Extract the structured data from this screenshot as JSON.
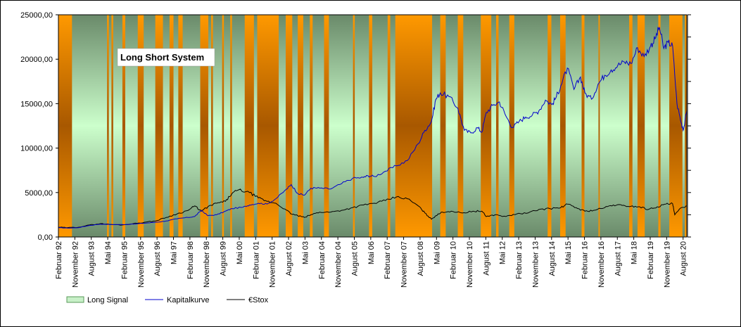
{
  "chart_data": {
    "type": "line",
    "title": "Long Short System",
    "ylim": [
      0,
      25000
    ],
    "yticks": [
      "0,00",
      "5000,00",
      "10000,00",
      "15000,00",
      "20000,00",
      "25000,00"
    ],
    "ytick_values": [
      0,
      5000,
      10000,
      15000,
      20000,
      25000
    ],
    "xlim": [
      1992.08,
      2020.75
    ],
    "xticks": [
      {
        "label": "Februar 92",
        "t": 1992.08
      },
      {
        "label": "November 92",
        "t": 1992.83
      },
      {
        "label": "August 93",
        "t": 1993.58
      },
      {
        "label": "Mai 94",
        "t": 1994.33
      },
      {
        "label": "Februar 95",
        "t": 1995.08
      },
      {
        "label": "November 95",
        "t": 1995.83
      },
      {
        "label": "August 96",
        "t": 1996.58
      },
      {
        "label": "Mai 97",
        "t": 1997.33
      },
      {
        "label": "Februar 98",
        "t": 1998.08
      },
      {
        "label": "November 98",
        "t": 1998.83
      },
      {
        "label": "August 99",
        "t": 1999.58
      },
      {
        "label": "Mai 00",
        "t": 2000.33
      },
      {
        "label": "Februar 01",
        "t": 2001.08
      },
      {
        "label": "November 01",
        "t": 2001.83
      },
      {
        "label": "August 02",
        "t": 2002.58
      },
      {
        "label": "Mai 03",
        "t": 2003.33
      },
      {
        "label": "Februar 04",
        "t": 2004.08
      },
      {
        "label": "November 04",
        "t": 2004.83
      },
      {
        "label": "August 05",
        "t": 2005.58
      },
      {
        "label": "Mai 06",
        "t": 2006.33
      },
      {
        "label": "Februar 07",
        "t": 2007.08
      },
      {
        "label": "November 07",
        "t": 2007.83
      },
      {
        "label": "August 08",
        "t": 2008.58
      },
      {
        "label": "Mai 09",
        "t": 2009.33
      },
      {
        "label": "Februar 10",
        "t": 2010.08
      },
      {
        "label": "November 10",
        "t": 2010.83
      },
      {
        "label": "August 11",
        "t": 2011.58
      },
      {
        "label": "Mai 12",
        "t": 2012.33
      },
      {
        "label": "Februar 13",
        "t": 2013.08
      },
      {
        "label": "November 13",
        "t": 2013.83
      },
      {
        "label": "August 14",
        "t": 2014.58
      },
      {
        "label": "Mai 15",
        "t": 2015.33
      },
      {
        "label": "Februar 16",
        "t": 2016.08
      },
      {
        "label": "November 16",
        "t": 2016.83
      },
      {
        "label": "August 17",
        "t": 2017.58
      },
      {
        "label": "Mai 18",
        "t": 2018.33
      },
      {
        "label": "Februar 19",
        "t": 2019.08
      },
      {
        "label": "November 19",
        "t": 2019.83
      },
      {
        "label": "August 20",
        "t": 2020.58
      }
    ],
    "grid": false,
    "legend_placement": "bottom-left",
    "long_signal": {
      "name": "Long Signal",
      "short_periods": [
        [
          1992.08,
          1992.7
        ],
        [
          1994.3,
          1994.38
        ],
        [
          1994.5,
          1994.58
        ],
        [
          1995.0,
          1995.13
        ],
        [
          1995.7,
          1995.97
        ],
        [
          1996.5,
          1996.85
        ],
        [
          1997.15,
          1997.33
        ],
        [
          1997.55,
          1997.75
        ],
        [
          1998.55,
          1998.92
        ],
        [
          1999.05,
          1999.13
        ],
        [
          1999.55,
          1999.63
        ],
        [
          1999.92,
          2000.0
        ],
        [
          2000.58,
          2001.0
        ],
        [
          2001.15,
          2002.13
        ],
        [
          2002.45,
          2002.75
        ],
        [
          2003.0,
          2003.25
        ],
        [
          2003.55,
          2003.68
        ],
        [
          2004.2,
          2004.42
        ],
        [
          2005.52,
          2005.6
        ],
        [
          2006.25,
          2006.4
        ],
        [
          2007.1,
          2007.22
        ],
        [
          2007.45,
          2009.13
        ],
        [
          2009.5,
          2009.75
        ],
        [
          2010.3,
          2010.55
        ],
        [
          2011.35,
          2011.83
        ],
        [
          2012.05,
          2012.16
        ],
        [
          2012.65,
          2012.88
        ],
        [
          2014.4,
          2014.57
        ],
        [
          2014.97,
          2015.22
        ],
        [
          2015.95,
          2016.08
        ],
        [
          2016.72,
          2016.78
        ],
        [
          2018.12,
          2018.27
        ],
        [
          2018.5,
          2018.83
        ],
        [
          2019.45,
          2019.55
        ],
        [
          2019.95,
          2020.55
        ],
        [
          2020.66,
          2020.75
        ]
      ]
    },
    "series": [
      {
        "name": "Kapitalkurve",
        "color": "#0000cc",
        "points": [
          [
            1992.08,
            1050
          ],
          [
            1992.5,
            1000
          ],
          [
            1993.0,
            1050
          ],
          [
            1993.5,
            1300
          ],
          [
            1994.0,
            1450
          ],
          [
            1994.5,
            1400
          ],
          [
            1995.0,
            1400
          ],
          [
            1995.5,
            1450
          ],
          [
            1996.0,
            1550
          ],
          [
            1996.5,
            1650
          ],
          [
            1997.0,
            1800
          ],
          [
            1997.5,
            2050
          ],
          [
            1998.0,
            2200
          ],
          [
            1998.3,
            2300
          ],
          [
            1998.6,
            3000
          ],
          [
            1998.9,
            2400
          ],
          [
            1999.3,
            2500
          ],
          [
            1999.7,
            2900
          ],
          [
            2000.0,
            3200
          ],
          [
            2000.5,
            3350
          ],
          [
            2000.8,
            3600
          ],
          [
            2001.2,
            3800
          ],
          [
            2001.6,
            3700
          ],
          [
            2002.0,
            4300
          ],
          [
            2002.5,
            5400
          ],
          [
            2002.7,
            5900
          ],
          [
            2003.0,
            4900
          ],
          [
            2003.3,
            4700
          ],
          [
            2003.6,
            5500
          ],
          [
            2004.0,
            5500
          ],
          [
            2004.5,
            5400
          ],
          [
            2005.0,
            6000
          ],
          [
            2005.5,
            6600
          ],
          [
            2006.0,
            6700
          ],
          [
            2006.2,
            6900
          ],
          [
            2006.5,
            6800
          ],
          [
            2007.0,
            7400
          ],
          [
            2007.5,
            8000
          ],
          [
            2008.0,
            8600
          ],
          [
            2008.5,
            10500
          ],
          [
            2008.8,
            12000
          ],
          [
            2009.1,
            13000
          ],
          [
            2009.3,
            15500
          ],
          [
            2009.5,
            16200
          ],
          [
            2009.9,
            15800
          ],
          [
            2010.3,
            14500
          ],
          [
            2010.6,
            12000
          ],
          [
            2010.9,
            11700
          ],
          [
            2011.2,
            12300
          ],
          [
            2011.4,
            11800
          ],
          [
            2011.6,
            14000
          ],
          [
            2011.9,
            14800
          ],
          [
            2012.2,
            15200
          ],
          [
            2012.5,
            13600
          ],
          [
            2012.8,
            12300
          ],
          [
            2013.1,
            13000
          ],
          [
            2013.4,
            13500
          ],
          [
            2013.7,
            13700
          ],
          [
            2014.0,
            14200
          ],
          [
            2014.3,
            15400
          ],
          [
            2014.6,
            14900
          ],
          [
            2014.8,
            15800
          ],
          [
            2015.0,
            17000
          ],
          [
            2015.3,
            19000
          ],
          [
            2015.6,
            16600
          ],
          [
            2015.9,
            18000
          ],
          [
            2016.1,
            16200
          ],
          [
            2016.4,
            15500
          ],
          [
            2016.7,
            17200
          ],
          [
            2017.0,
            18200
          ],
          [
            2017.3,
            18800
          ],
          [
            2017.6,
            19300
          ],
          [
            2017.9,
            19700
          ],
          [
            2018.2,
            19500
          ],
          [
            2018.5,
            21300
          ],
          [
            2018.8,
            20300
          ],
          [
            2019.1,
            21500
          ],
          [
            2019.3,
            22300
          ],
          [
            2019.5,
            23600
          ],
          [
            2019.7,
            21200
          ],
          [
            2019.9,
            21900
          ],
          [
            2020.1,
            21500
          ],
          [
            2020.3,
            15000
          ],
          [
            2020.5,
            12800
          ],
          [
            2020.6,
            12100
          ],
          [
            2020.75,
            14200
          ]
        ]
      },
      {
        "name": "€Stox",
        "color": "#000000",
        "points": [
          [
            1992.08,
            1100
          ],
          [
            1992.5,
            1050
          ],
          [
            1993.0,
            1100
          ],
          [
            1993.5,
            1350
          ],
          [
            1994.0,
            1500
          ],
          [
            1994.5,
            1400
          ],
          [
            1995.0,
            1350
          ],
          [
            1995.5,
            1500
          ],
          [
            1996.0,
            1650
          ],
          [
            1996.5,
            1800
          ],
          [
            1997.0,
            2200
          ],
          [
            1997.5,
            2600
          ],
          [
            1998.0,
            3000
          ],
          [
            1998.3,
            3500
          ],
          [
            1998.6,
            2900
          ],
          [
            1998.9,
            3400
          ],
          [
            1999.3,
            3800
          ],
          [
            1999.7,
            4000
          ],
          [
            2000.0,
            4900
          ],
          [
            2000.3,
            5300
          ],
          [
            2000.8,
            5000
          ],
          [
            2001.2,
            4400
          ],
          [
            2001.6,
            4000
          ],
          [
            2002.0,
            3800
          ],
          [
            2002.5,
            3000
          ],
          [
            2002.7,
            2600
          ],
          [
            2003.0,
            2400
          ],
          [
            2003.3,
            2200
          ],
          [
            2003.6,
            2500
          ],
          [
            2004.0,
            2800
          ],
          [
            2004.5,
            2800
          ],
          [
            2005.0,
            3000
          ],
          [
            2005.5,
            3300
          ],
          [
            2006.0,
            3600
          ],
          [
            2006.5,
            3800
          ],
          [
            2007.0,
            4100
          ],
          [
            2007.5,
            4500
          ],
          [
            2008.0,
            4300
          ],
          [
            2008.5,
            3500
          ],
          [
            2008.8,
            2700
          ],
          [
            2009.1,
            2000
          ],
          [
            2009.3,
            2400
          ],
          [
            2009.6,
            2800
          ],
          [
            2010.0,
            2900
          ],
          [
            2010.5,
            2700
          ],
          [
            2011.0,
            2900
          ],
          [
            2011.4,
            2900
          ],
          [
            2011.6,
            2300
          ],
          [
            2012.0,
            2500
          ],
          [
            2012.5,
            2300
          ],
          [
            2013.0,
            2600
          ],
          [
            2013.5,
            2700
          ],
          [
            2014.0,
            3100
          ],
          [
            2014.5,
            3200
          ],
          [
            2015.0,
            3300
          ],
          [
            2015.3,
            3700
          ],
          [
            2015.7,
            3300
          ],
          [
            2016.1,
            2900
          ],
          [
            2016.5,
            3000
          ],
          [
            2017.0,
            3300
          ],
          [
            2017.4,
            3600
          ],
          [
            2017.8,
            3550
          ],
          [
            2018.2,
            3450
          ],
          [
            2018.6,
            3400
          ],
          [
            2019.0,
            3100
          ],
          [
            2019.4,
            3400
          ],
          [
            2019.8,
            3700
          ],
          [
            2020.1,
            3750
          ],
          [
            2020.2,
            2500
          ],
          [
            2020.5,
            3300
          ],
          [
            2020.75,
            3500
          ]
        ]
      }
    ]
  },
  "colors": {
    "plot_border": "#000000",
    "short_band_edge": "#ff9900",
    "short_band_center": "#a85800",
    "long_band_edge": "#6a8a6a",
    "long_band_center": "#ccffcc",
    "right_axis_bar": "#7f7f7f"
  }
}
